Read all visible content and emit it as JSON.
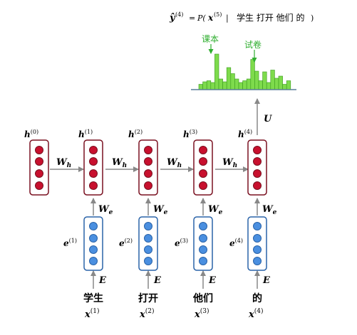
{
  "formula": {
    "lhs": "ŷ",
    "lhs_sup": "(4)",
    "eq": "=",
    "p_open": "P(",
    "x": "x",
    "x_sup": "(5)",
    "bar": "|",
    "context": "学生 打开 他们 的",
    "p_close": ")"
  },
  "histogram": {
    "label_left": "课本",
    "label_right": "试卷",
    "colors": {
      "bar": "#7edb4c",
      "bar_stroke": "#3a9a1e",
      "label": "#2fae2f",
      "axis": "#5a7f98"
    },
    "values": [
      0.15,
      0.22,
      0.25,
      0.2,
      1.0,
      0.3,
      0.22,
      0.62,
      0.45,
      0.3,
      0.2,
      0.25,
      0.3,
      0.85,
      0.52,
      0.25,
      0.5,
      0.2,
      0.55,
      0.32,
      0.38,
      0.15,
      0.25
    ]
  },
  "labels": {
    "U": "U",
    "Wh": "W",
    "Wh_sub": "h",
    "We": "W",
    "We_sub": "e",
    "E": "E",
    "h": "h",
    "e": "e",
    "x": "x"
  },
  "hidden_states": [
    {
      "sup": "(0)"
    },
    {
      "sup": "(1)"
    },
    {
      "sup": "(2)"
    },
    {
      "sup": "(3)"
    },
    {
      "sup": "(4)"
    }
  ],
  "embeddings": [
    {
      "sup": "(1)"
    },
    {
      "sup": "(2)"
    },
    {
      "sup": "(3)"
    },
    {
      "sup": "(4)"
    }
  ],
  "inputs": [
    {
      "word": "学生",
      "sup": "(1)"
    },
    {
      "word": "打开",
      "sup": "(2)"
    },
    {
      "word": "他们",
      "sup": "(3)"
    },
    {
      "word": "的",
      "sup": "(4)"
    }
  ],
  "colors": {
    "hidden_fill": "#c8102e",
    "hidden_stroke": "#7a1020",
    "embed_fill": "#4a8fe0",
    "embed_stroke": "#2a63a8",
    "arrow": "#888888"
  }
}
